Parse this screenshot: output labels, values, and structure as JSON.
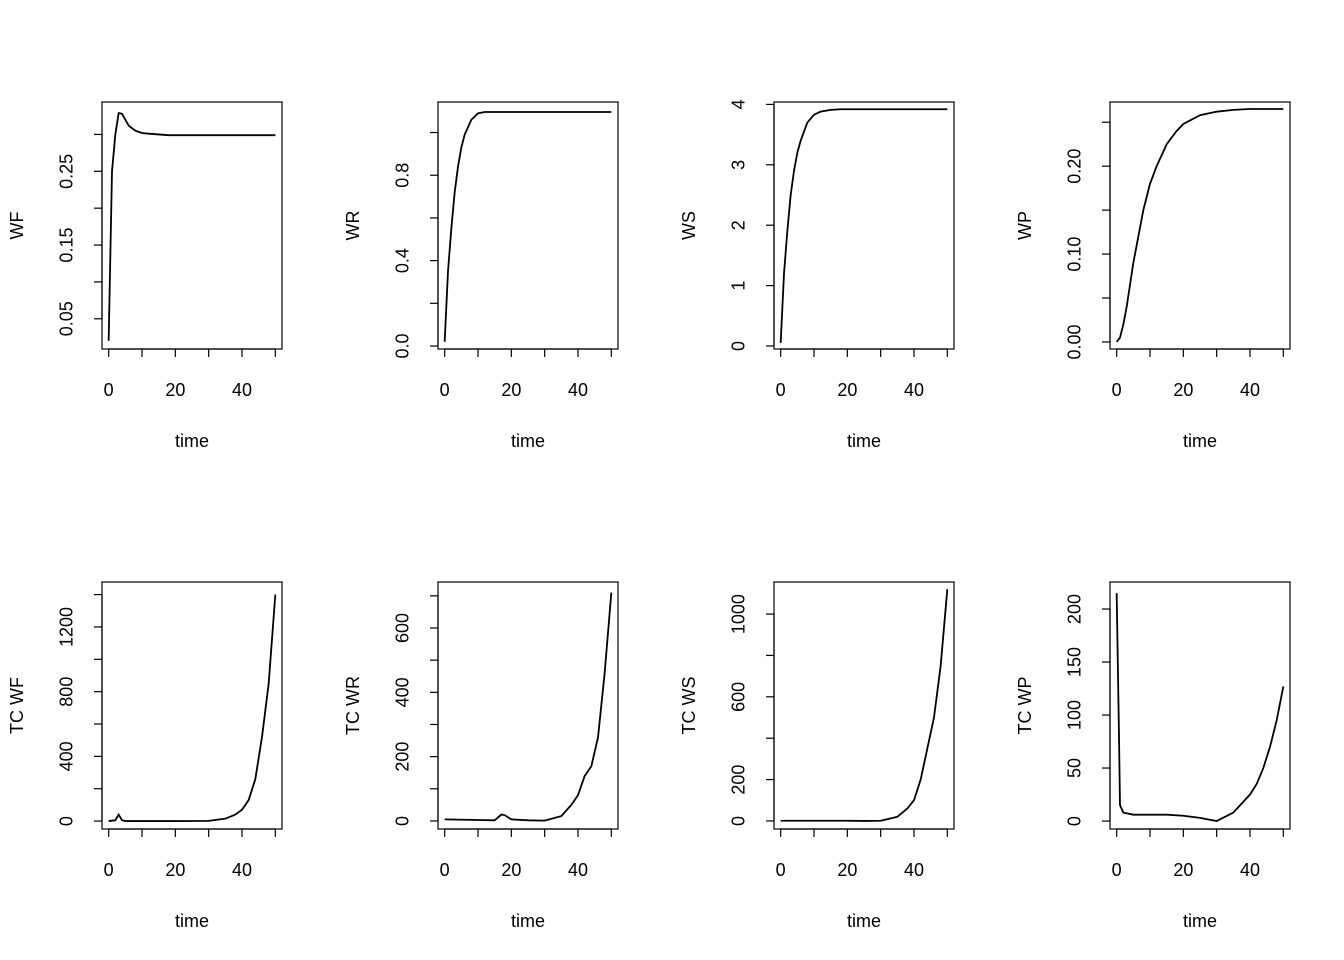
{
  "chart_data": [
    {
      "type": "line",
      "xlabel": "time",
      "ylabel": "WF",
      "color": "#000000",
      "x": [
        0,
        1,
        2,
        3,
        4,
        5,
        6,
        8,
        10,
        12,
        15,
        18,
        20,
        25,
        30,
        35,
        40,
        45,
        50
      ],
      "values": [
        0.02,
        0.25,
        0.3,
        0.329,
        0.328,
        0.32,
        0.312,
        0.305,
        0.302,
        0.301,
        0.3,
        0.299,
        0.299,
        0.299,
        0.299,
        0.299,
        0.299,
        0.299,
        0.299
      ],
      "xlim": [
        -2,
        52
      ],
      "ylim": [
        0.009,
        0.344
      ],
      "xticks": [
        0,
        {
          "value": 10,
          "label": null
        },
        20,
        {
          "value": 30,
          "label": null
        },
        40,
        {
          "value": 50,
          "label": null
        }
      ],
      "yticks": [
        0.05,
        {
          "value": 0.1,
          "label": null
        },
        0.15,
        {
          "value": 0.2,
          "label": null
        },
        0.25,
        {
          "value": 0.3,
          "label": null
        }
      ]
    },
    {
      "type": "line",
      "xlabel": "time",
      "ylabel": "WR",
      "color": "#000000",
      "x": [
        0,
        1,
        2,
        3,
        4,
        5,
        6,
        8,
        10,
        12,
        15,
        18,
        20,
        25,
        30,
        35,
        40,
        45,
        50
      ],
      "values": [
        0.02,
        0.35,
        0.55,
        0.72,
        0.84,
        0.93,
        0.99,
        1.06,
        1.09,
        1.096,
        1.096,
        1.096,
        1.096,
        1.096,
        1.096,
        1.096,
        1.096,
        1.096,
        1.096
      ],
      "xlim": [
        -2,
        52
      ],
      "ylim": [
        -0.014,
        1.143
      ],
      "xticks": [
        0,
        {
          "value": 10,
          "label": null
        },
        20,
        {
          "value": 30,
          "label": null
        },
        40,
        {
          "value": 50,
          "label": null
        }
      ],
      "yticks": [
        {
          "value": 0,
          "label": "0.0"
        },
        {
          "value": 0.2,
          "label": null
        },
        0.4,
        {
          "value": 0.6,
          "label": null
        },
        0.8,
        {
          "value": 1.0,
          "label": null
        }
      ]
    },
    {
      "type": "line",
      "xlabel": "time",
      "ylabel": "WS",
      "color": "#000000",
      "x": [
        0,
        1,
        2,
        3,
        4,
        5,
        6,
        8,
        10,
        12,
        15,
        18,
        20,
        25,
        30,
        35,
        40,
        45,
        50
      ],
      "values": [
        0.05,
        1.2,
        1.9,
        2.5,
        2.9,
        3.2,
        3.4,
        3.7,
        3.83,
        3.88,
        3.91,
        3.92,
        3.92,
        3.92,
        3.92,
        3.92,
        3.92,
        3.92,
        3.92
      ],
      "xlim": [
        -2,
        52
      ],
      "ylim": [
        -0.05,
        4.04
      ],
      "xticks": [
        0,
        {
          "value": 10,
          "label": null
        },
        20,
        {
          "value": 30,
          "label": null
        },
        40,
        {
          "value": 50,
          "label": null
        }
      ],
      "yticks": [
        0,
        1,
        2,
        3,
        4
      ]
    },
    {
      "type": "line",
      "xlabel": "time",
      "ylabel": "WP",
      "color": "#000000",
      "x": [
        0,
        1,
        2,
        3,
        4,
        5,
        6,
        8,
        10,
        12,
        15,
        18,
        20,
        25,
        30,
        35,
        40,
        45,
        50
      ],
      "values": [
        0,
        0.005,
        0.02,
        0.04,
        0.065,
        0.09,
        0.11,
        0.15,
        0.18,
        0.2,
        0.225,
        0.24,
        0.248,
        0.258,
        0.262,
        0.264,
        0.265,
        0.265,
        0.265
      ],
      "xlim": [
        -2,
        52
      ],
      "ylim": [
        -0.008,
        0.273
      ],
      "xticks": [
        0,
        {
          "value": 10,
          "label": null
        },
        20,
        {
          "value": 30,
          "label": null
        },
        40,
        {
          "value": 50,
          "label": null
        }
      ],
      "yticks": [
        {
          "value": 0,
          "label": "0.00"
        },
        {
          "value": 0.05,
          "label": null
        },
        {
          "value": 0.1,
          "label": "0.10"
        },
        {
          "value": 0.15,
          "label": null
        },
        {
          "value": 0.2,
          "label": "0.20"
        },
        {
          "value": 0.25,
          "label": null
        }
      ]
    },
    {
      "type": "line",
      "xlabel": "time",
      "ylabel": "TC WF",
      "color": "#000000",
      "x": [
        0,
        2,
        3,
        4,
        5,
        10,
        20,
        30,
        35,
        38,
        40,
        42,
        44,
        46,
        48,
        50
      ],
      "values": [
        0,
        5,
        40,
        5,
        0,
        0,
        0,
        1,
        15,
        40,
        70,
        130,
        260,
        520,
        850,
        1400
      ],
      "xlim": [
        -2,
        52
      ],
      "ylim": [
        -49,
        1478
      ],
      "xticks": [
        0,
        {
          "value": 10,
          "label": null
        },
        20,
        {
          "value": 30,
          "label": null
        },
        40,
        {
          "value": 50,
          "label": null
        }
      ],
      "yticks": [
        0,
        {
          "value": 200,
          "label": null
        },
        400,
        {
          "value": 600,
          "label": null
        },
        800,
        {
          "value": 1000,
          "label": null
        },
        1200,
        {
          "value": 1400,
          "label": null
        }
      ]
    },
    {
      "type": "line",
      "xlabel": "time",
      "ylabel": "TC WR",
      "color": "#000000",
      "x": [
        0,
        10,
        15,
        17,
        18,
        20,
        25,
        30,
        35,
        38,
        40,
        42,
        44,
        46,
        48,
        50
      ],
      "values": [
        5,
        3,
        2,
        20,
        18,
        5,
        2,
        1,
        15,
        50,
        80,
        140,
        170,
        260,
        460,
        710
      ],
      "xlim": [
        -2,
        52
      ],
      "ylim": [
        -25,
        743
      ],
      "xticks": [
        0,
        {
          "value": 10,
          "label": null
        },
        20,
        {
          "value": 30,
          "label": null
        },
        40,
        {
          "value": 50,
          "label": null
        }
      ],
      "yticks": [
        0,
        {
          "value": 100,
          "label": null
        },
        200,
        {
          "value": 300,
          "label": null
        },
        400,
        {
          "value": 500,
          "label": null
        },
        600,
        {
          "value": 700,
          "label": null
        }
      ]
    },
    {
      "type": "line",
      "xlabel": "time",
      "ylabel": "TC WS",
      "color": "#000000",
      "x": [
        0,
        10,
        20,
        25,
        30,
        35,
        38,
        40,
        42,
        44,
        46,
        48,
        50
      ],
      "values": [
        1,
        1,
        1,
        0,
        1,
        20,
        60,
        100,
        200,
        350,
        500,
        750,
        1120
      ],
      "xlim": [
        -2,
        52
      ],
      "ylim": [
        -39,
        1155
      ],
      "xticks": [
        0,
        {
          "value": 10,
          "label": null
        },
        20,
        {
          "value": 30,
          "label": null
        },
        40,
        {
          "value": 50,
          "label": null
        }
      ],
      "yticks": [
        0,
        200,
        {
          "value": 400,
          "label": null
        },
        600,
        {
          "value": 800,
          "label": null
        },
        1000
      ]
    },
    {
      "type": "line",
      "xlabel": "time",
      "ylabel": "TC WP",
      "color": "#000000",
      "x": [
        0,
        0.7,
        1,
        2,
        5,
        10,
        15,
        20,
        25,
        30,
        35,
        40,
        42,
        44,
        46,
        48,
        50
      ],
      "values": [
        215,
        80,
        15,
        8,
        6,
        6,
        6,
        5,
        3,
        0,
        8,
        25,
        35,
        50,
        70,
        95,
        127
      ],
      "xlim": [
        -2,
        52
      ],
      "ylim": [
        -7.5,
        225.5
      ],
      "xticks": [
        0,
        {
          "value": 10,
          "label": null
        },
        20,
        {
          "value": 30,
          "label": null
        },
        40,
        {
          "value": 50,
          "label": null
        }
      ],
      "yticks": [
        0,
        50,
        100,
        150,
        200
      ]
    }
  ]
}
